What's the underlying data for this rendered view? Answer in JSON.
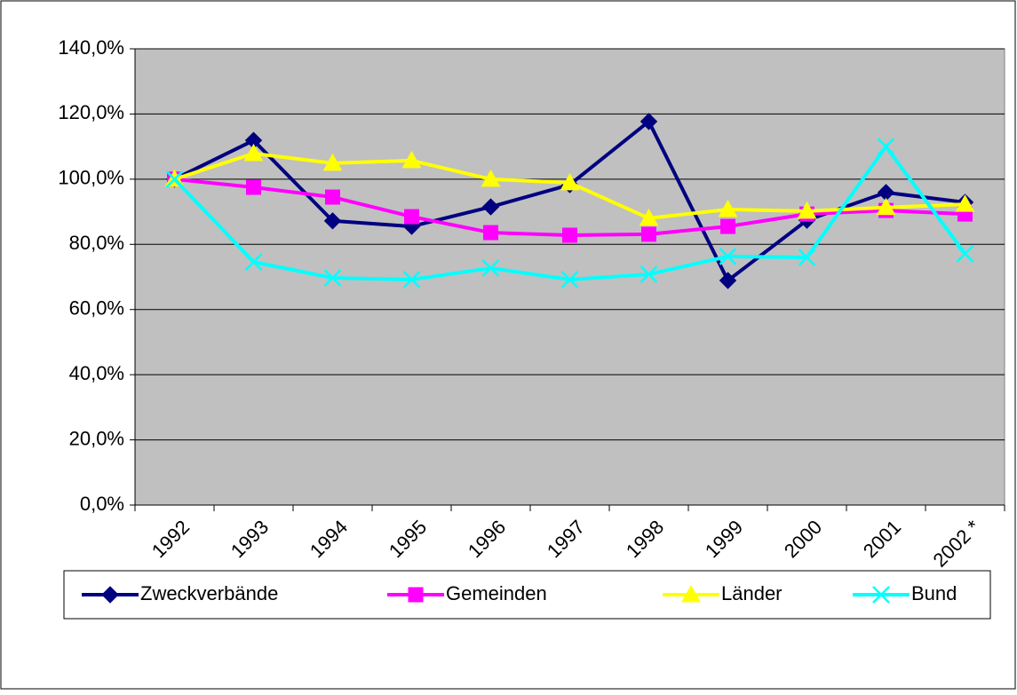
{
  "chart_data": {
    "type": "line",
    "categories": [
      "1992",
      "1993",
      "1994",
      "1995",
      "1996",
      "1997",
      "1998",
      "1999",
      "2000",
      "2001",
      "2002 *"
    ],
    "series": [
      {
        "name": "Zweckverbände",
        "color": "#000080",
        "marker": "diamond",
        "values": [
          100,
          111.9,
          87.2,
          85.5,
          91.5,
          98.3,
          117.7,
          68.9,
          87.4,
          95.9,
          92.9
        ]
      },
      {
        "name": "Gemeinden",
        "color": "#FF00FF",
        "marker": "square",
        "values": [
          100,
          97.5,
          94.5,
          88.5,
          83.6,
          82.8,
          83.1,
          85.5,
          89.3,
          90.4,
          89.3
        ]
      },
      {
        "name": "Länder",
        "color": "#FFFF00",
        "marker": "triangle",
        "values": [
          100,
          107.9,
          104.9,
          105.7,
          100,
          98.9,
          88,
          90.7,
          90.2,
          91.3,
          92.3
        ]
      },
      {
        "name": "Bund",
        "color": "#00FFFF",
        "marker": "x",
        "values": [
          100,
          74.6,
          69.7,
          69.2,
          72.7,
          69.2,
          70.8,
          76.3,
          76,
          110,
          77.1
        ]
      }
    ],
    "ylim": [
      0,
      140
    ],
    "yticks": [
      {
        "value": 0,
        "label": "0,0%"
      },
      {
        "value": 20,
        "label": "20,0%"
      },
      {
        "value": 40,
        "label": "40,0%"
      },
      {
        "value": 60,
        "label": "60,0%"
      },
      {
        "value": 80,
        "label": "80,0%"
      },
      {
        "value": 100,
        "label": "100,0%"
      },
      {
        "value": 120,
        "label": "120,0%"
      },
      {
        "value": 140,
        "label": "140,0%"
      }
    ],
    "grid": true,
    "plot_background": "#C0C0C0",
    "legend": "bottom"
  }
}
